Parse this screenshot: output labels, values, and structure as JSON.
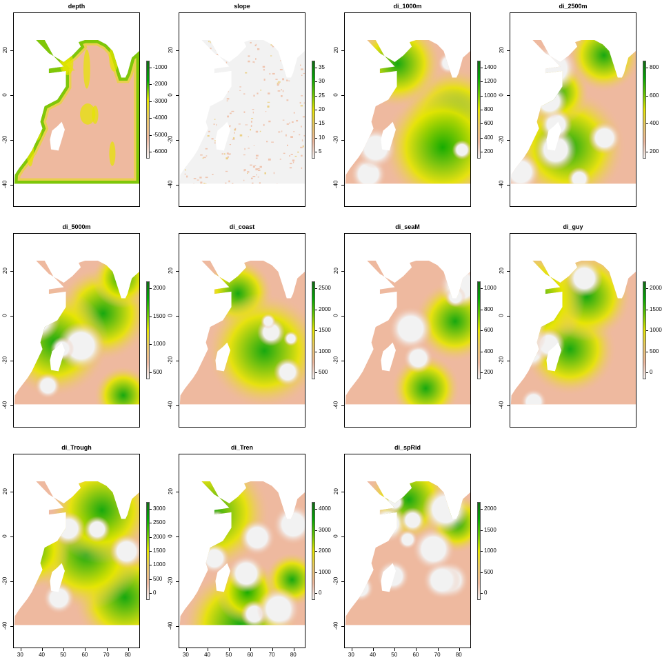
{
  "colors": {
    "scale_low": "#f2f2f2",
    "scale_mid1": "#eeb99f",
    "scale_mid2": "#e8c76a",
    "scale_mid3": "#e6e600",
    "scale_mid4": "#63c600",
    "scale_high": "#00a600",
    "scale_top": "#116b15"
  },
  "axes": {
    "x_ticks": [
      "30",
      "40",
      "50",
      "60",
      "70",
      "80"
    ],
    "y_ticks": [
      "20",
      "0",
      "-20",
      "-40"
    ]
  },
  "panels": [
    {
      "title": "depth",
      "legend": [
        "-1000",
        "-2000",
        "-3000",
        "-4000",
        "-5000",
        "-6000"
      ],
      "style": "depth"
    },
    {
      "title": "slope",
      "legend": [
        "35",
        "30",
        "25",
        "20",
        "15",
        "10",
        "5"
      ],
      "style": "slope"
    },
    {
      "title": "di_1000m",
      "legend": [
        "1400",
        "1200",
        "1000",
        "800",
        "600",
        "400",
        "200"
      ],
      "style": "dist"
    },
    {
      "title": "di_2500m",
      "legend": [
        "800",
        "600",
        "400",
        "200"
      ],
      "style": "dist"
    },
    {
      "title": "di_5000m",
      "legend": [
        "2000",
        "1500",
        "1000",
        "500"
      ],
      "style": "dist"
    },
    {
      "title": "di_coast",
      "legend": [
        "2500",
        "2000",
        "1500",
        "1000",
        "500"
      ],
      "style": "dist"
    },
    {
      "title": "di_seaM",
      "legend": [
        "1000",
        "800",
        "600",
        "400",
        "200"
      ],
      "style": "dist"
    },
    {
      "title": "di_guy",
      "legend": [
        "2000",
        "1500",
        "1000",
        "500",
        "0"
      ],
      "style": "dist"
    },
    {
      "title": "di_Trough",
      "legend": [
        "3000",
        "2500",
        "2000",
        "1500",
        "1000",
        "500",
        "0"
      ],
      "style": "dist"
    },
    {
      "title": "di_Tren",
      "legend": [
        "4000",
        "3000",
        "2000",
        "1000",
        "0"
      ],
      "style": "dist"
    },
    {
      "title": "di_spRid",
      "legend": [
        "2000",
        "1500",
        "1000",
        "500",
        "0"
      ],
      "style": "dist"
    }
  ]
}
